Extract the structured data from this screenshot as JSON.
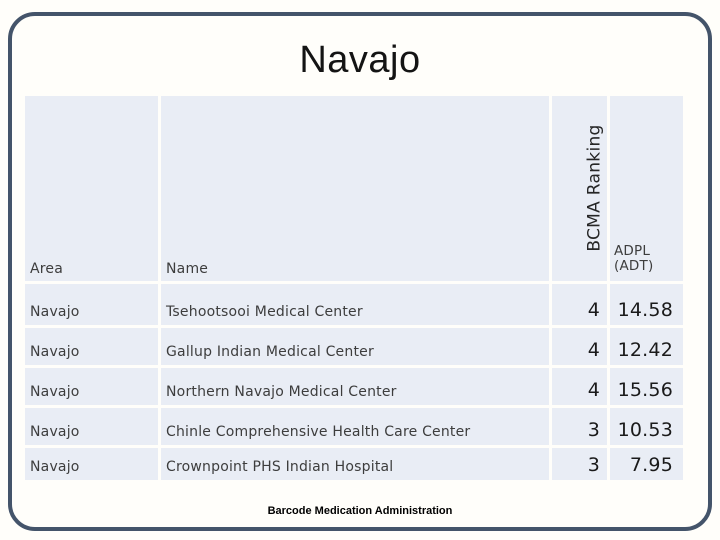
{
  "colors": {
    "border": "#44546A",
    "cell_background": "#E9EDF5",
    "grid_line": "#FFFFFF",
    "body_text": "#3D3D3D",
    "number_text": "#1A1A1A",
    "title_text": "#141414"
  },
  "slide": {
    "title": "Navajo",
    "footer": "Barcode Medication Administration"
  },
  "table": {
    "header": {
      "area": "Area",
      "name": "Name",
      "bcma": "BCMA Ranking",
      "adpl_line1": "ADPL",
      "adpl_line2": "(ADT)"
    },
    "rows": [
      {
        "area": "Navajo",
        "name": "Tsehootsooi Medical Center",
        "rank": "4",
        "adpl": "14.58"
      },
      {
        "area": "Navajo",
        "name": "Gallup Indian Medical Center",
        "rank": "4",
        "adpl": "12.42"
      },
      {
        "area": "Navajo",
        "name": "Northern Navajo Medical Center",
        "rank": "4",
        "adpl": "15.56"
      },
      {
        "area": "Navajo",
        "name": "Chinle Comprehensive Health Care Center",
        "rank": "3",
        "adpl": "10.53"
      },
      {
        "area": "Navajo",
        "name": "Crownpoint PHS Indian Hospital",
        "rank": "3",
        "adpl": "7.95"
      }
    ]
  }
}
